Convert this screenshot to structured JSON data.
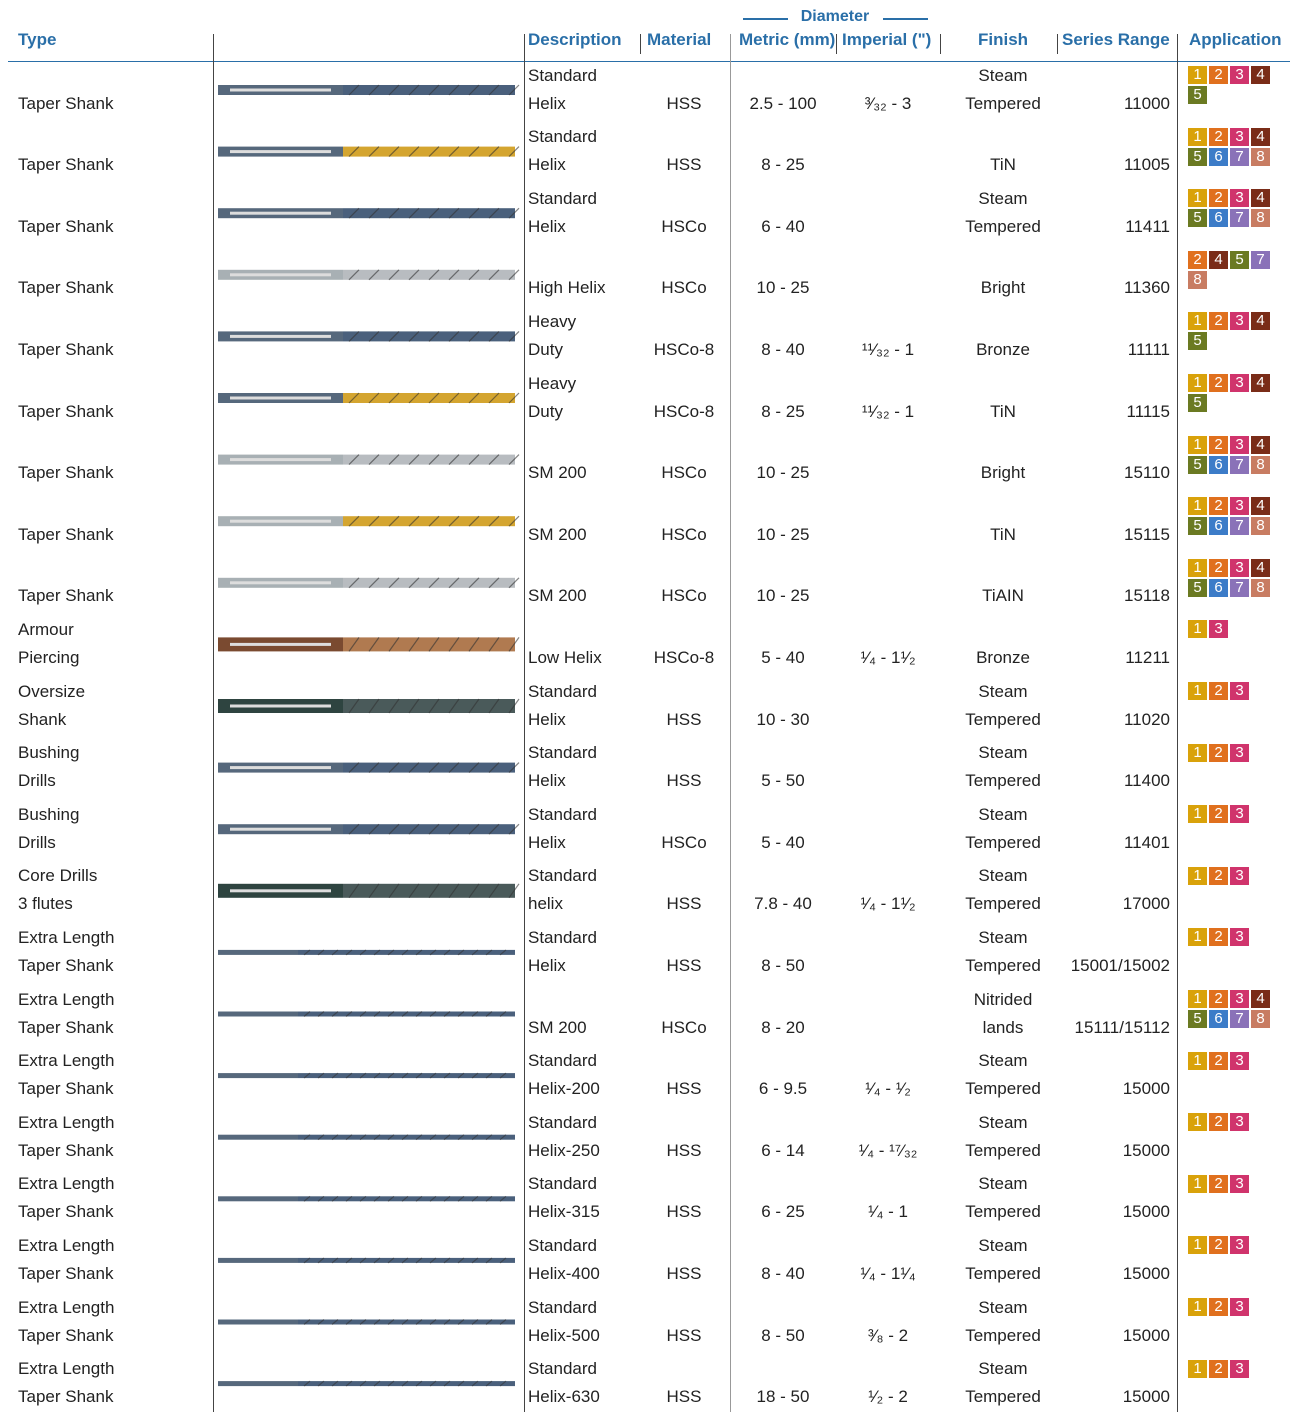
{
  "header": {
    "type": "Type",
    "description": "Description",
    "material": "Material",
    "diameter": "Diameter",
    "metric": "Metric (mm)",
    "imperial": "Imperial (\")",
    "finish": "Finish",
    "series": "Series Range",
    "application": "Application"
  },
  "badge_colors": [
    "#d9a20a",
    "#e0701e",
    "#d0346c",
    "#7a2c18",
    "#6b7a22",
    "#3c7cc8",
    "#8a72b8",
    "#c87c62"
  ],
  "table": {
    "rows": [
      {
        "type": "Taper Shank",
        "description": "Standard\nHelix",
        "material": "HSS",
        "metric": "2.5 - 100",
        "imperial": "³⁄₃₂ - 3",
        "finish": "Steam\nTempered",
        "series": 11000,
        "application": [
          1,
          2,
          3,
          4,
          5
        ]
      },
      {
        "type": "Taper Shank",
        "description": "Standard\nHelix",
        "material": "HSS",
        "metric": "8 - 25",
        "imperial": null,
        "finish": "TiN",
        "series": 11005,
        "application": [
          1,
          2,
          3,
          4,
          5,
          6,
          7,
          8
        ]
      },
      {
        "type": "Taper Shank",
        "description": "Standard\nHelix",
        "material": "HSCo",
        "metric": "6 - 40",
        "imperial": null,
        "finish": "Steam\nTempered",
        "series": 11411,
        "application": [
          1,
          2,
          3,
          4,
          5,
          6,
          7,
          8
        ]
      },
      {
        "type": "Taper Shank",
        "description": "High Helix",
        "material": "HSCo",
        "metric": "10 - 25",
        "imperial": null,
        "finish": "Bright",
        "series": 11360,
        "application": [
          2,
          4,
          5,
          7,
          8
        ]
      },
      {
        "type": "Taper Shank",
        "description": "Heavy\nDuty",
        "material": "HSCo-8",
        "metric": "8 - 40",
        "imperial": "¹¹⁄₃₂ - 1",
        "finish": "Bronze",
        "series": 11111,
        "application": [
          1,
          2,
          3,
          4,
          5
        ]
      },
      {
        "type": "Taper Shank",
        "description": "Heavy\nDuty",
        "material": "HSCo-8",
        "metric": "8 - 25",
        "imperial": "¹¹⁄₃₂ - 1",
        "finish": "TiN",
        "series": 11115,
        "application": [
          1,
          2,
          3,
          4,
          5
        ]
      },
      {
        "type": "Taper Shank",
        "description": "SM 200",
        "material": "HSCo",
        "metric": "10 - 25",
        "imperial": null,
        "finish": "Bright",
        "series": 15110,
        "application": [
          1,
          2,
          3,
          4,
          5,
          6,
          7,
          8
        ]
      },
      {
        "type": "Taper Shank",
        "description": "SM 200",
        "material": "HSCo",
        "metric": "10 - 25",
        "imperial": null,
        "finish": "TiN",
        "series": 15115,
        "application": [
          1,
          2,
          3,
          4,
          5,
          6,
          7,
          8
        ]
      },
      {
        "type": "Taper Shank",
        "description": "SM 200",
        "material": "HSCo",
        "metric": "10 - 25",
        "imperial": null,
        "finish": "TiAIN",
        "series": 15118,
        "application": [
          1,
          2,
          3,
          4,
          5,
          6,
          7,
          8
        ]
      },
      {
        "type": "Armour\nPiercing",
        "description": "Low Helix",
        "material": "HSCo-8",
        "metric": "5 - 40",
        "imperial": "¹⁄₄ - 1¹⁄₂",
        "finish": "Bronze",
        "series": 11211,
        "application": [
          1,
          3
        ]
      },
      {
        "type": "Oversize\nShank",
        "description": "Standard\nHelix",
        "material": "HSS",
        "metric": "10 - 30",
        "imperial": null,
        "finish": "Steam\nTempered",
        "series": 11020,
        "application": [
          1,
          2,
          3
        ]
      },
      {
        "type": "Bushing\nDrills",
        "description": "Standard\nHelix",
        "material": "HSS",
        "metric": "5 - 50",
        "imperial": null,
        "finish": "Steam\nTempered",
        "series": 11400,
        "application": [
          1,
          2,
          3
        ]
      },
      {
        "type": "Bushing\nDrills",
        "description": "Standard\nHelix",
        "material": "HSCo",
        "metric": "5 - 40",
        "imperial": null,
        "finish": "Steam\nTempered",
        "series": 11401,
        "application": [
          1,
          2,
          3
        ]
      },
      {
        "type": "Core Drills\n3 flutes",
        "description": "Standard\nhelix",
        "material": "HSS",
        "metric": "7.8 - 40",
        "imperial": "¹⁄₄ - 1¹⁄₂",
        "finish": "Steam\nTempered",
        "series": 17000,
        "application": [
          1,
          2,
          3
        ]
      },
      {
        "type": "Extra Length\nTaper Shank",
        "description": "Standard\nHelix",
        "material": "HSS",
        "metric": "8 - 50",
        "imperial": null,
        "finish": "Steam\nTempered",
        "series": "15001/15002",
        "application": [
          1,
          2,
          3
        ]
      },
      {
        "type": "Extra Length\nTaper Shank",
        "description": "SM 200",
        "material": "HSCo",
        "metric": "8 - 20",
        "imperial": null,
        "finish": "Nitrided\nlands",
        "series": "15111/15112",
        "application": [
          1,
          2,
          3,
          4,
          5,
          6,
          7,
          8
        ]
      },
      {
        "type": "Extra Length\nTaper Shank",
        "description": "Standard\nHelix-200",
        "material": "HSS",
        "metric": "6 - 9.5",
        "imperial": "¹⁄₄ - ¹⁄₂",
        "finish": "Steam\nTempered",
        "series": 15000,
        "application": [
          1,
          2,
          3
        ]
      },
      {
        "type": "Extra Length\nTaper Shank",
        "description": "Standard\nHelix-250",
        "material": "HSS",
        "metric": "6 - 14",
        "imperial": "¹⁄₄ - ¹⁷⁄₃₂",
        "finish": "Steam\nTempered",
        "series": 15000,
        "application": [
          1,
          2,
          3
        ]
      },
      {
        "type": "Extra Length\nTaper Shank",
        "description": "Standard\nHelix-315",
        "material": "HSS",
        "metric": "6 - 25",
        "imperial": "¹⁄₄ - 1",
        "finish": "Steam\nTempered",
        "series": 15000,
        "application": [
          1,
          2,
          3
        ]
      },
      {
        "type": "Extra Length\nTaper Shank",
        "description": "Standard\nHelix-400",
        "material": "HSS",
        "metric": "8 - 40",
        "imperial": "¹⁄₄ - 1¹⁄₄",
        "finish": "Steam\nTempered",
        "series": 15000,
        "application": [
          1,
          2,
          3
        ]
      },
      {
        "type": "Extra Length\nTaper Shank",
        "description": "Standard\nHelix-500",
        "material": "HSS",
        "metric": "8 - 50",
        "imperial": "³⁄₈ - 2",
        "finish": "Steam\nTempered",
        "series": 15000,
        "application": [
          1,
          2,
          3
        ]
      },
      {
        "type": "Extra Length\nTaper Shank",
        "description": "Standard\nHelix-630",
        "material": "HSS",
        "metric": "18 - 50",
        "imperial": "¹⁄₂ - 2",
        "finish": "Steam\nTempered",
        "series": 15000,
        "application": [
          1,
          2,
          3
        ]
      }
    ]
  }
}
